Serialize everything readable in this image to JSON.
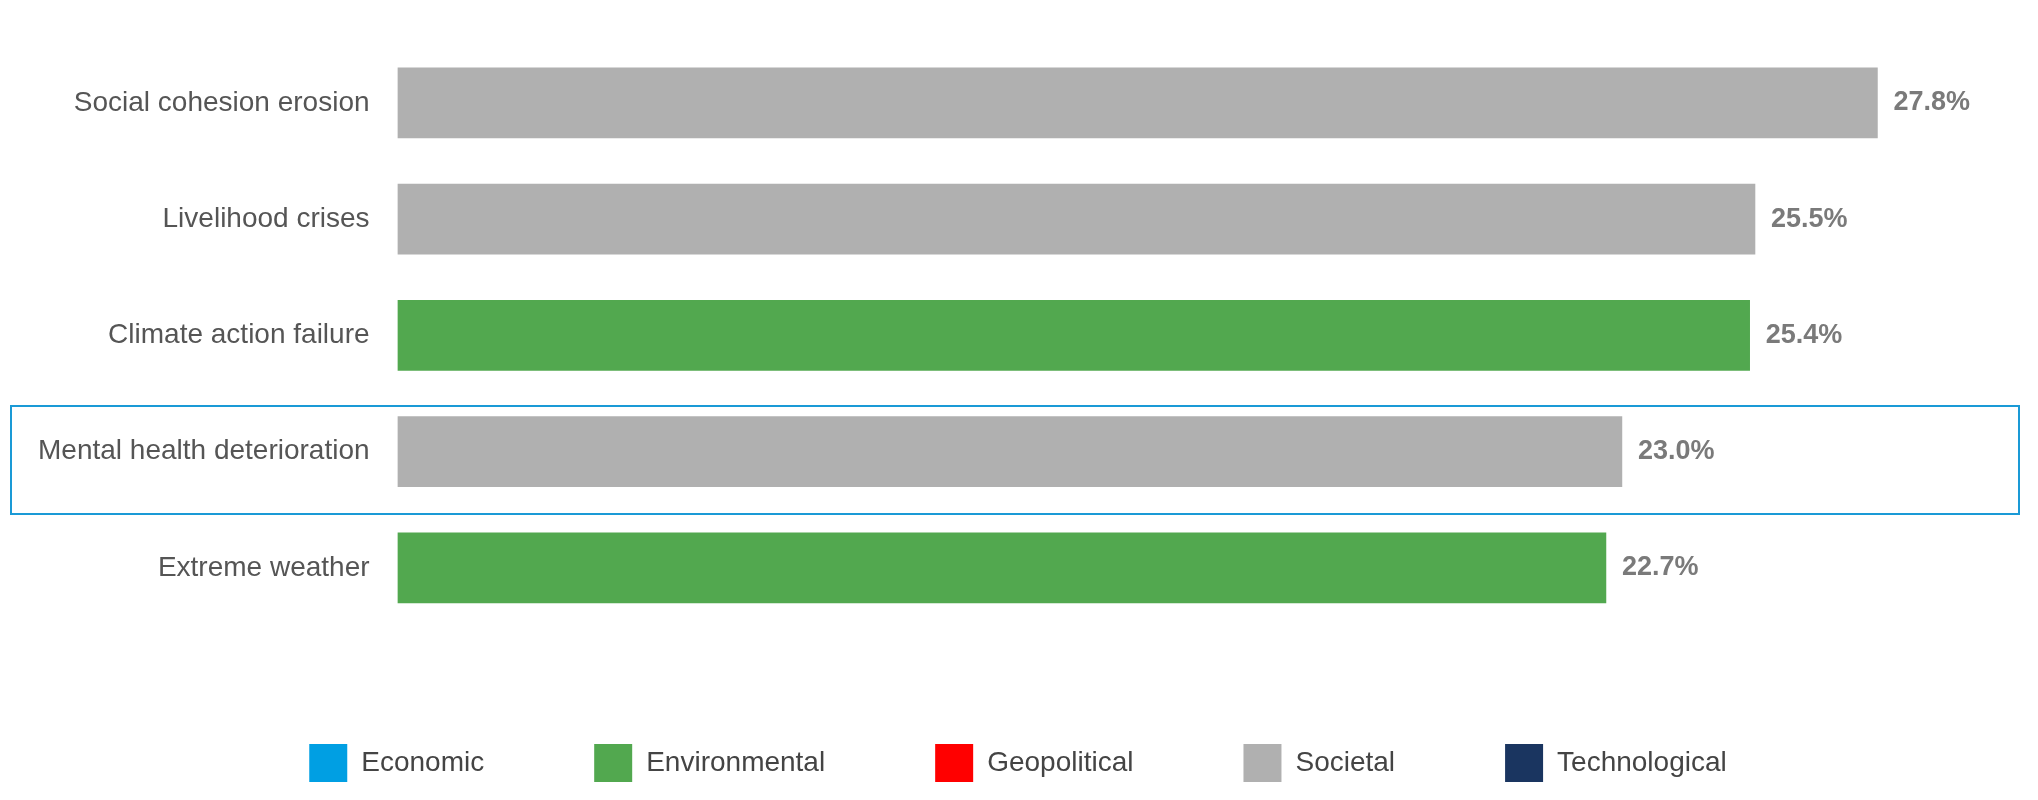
{
  "chart_data": {
    "type": "bar",
    "orientation": "horizontal",
    "stacked": true,
    "categories": [
      "Social cohesion erosion",
      "Livelihood crises",
      "Climate action failure",
      "Mental health deterioration",
      "Extreme weather"
    ],
    "series": [
      {
        "name": "Economic",
        "color": "#009fe3",
        "values": [
          null,
          null,
          null,
          null,
          null
        ]
      },
      {
        "name": "Environmental",
        "color": "#52a84f",
        "values": [
          null,
          null,
          25.4,
          null,
          22.7
        ],
        "value_labels": [
          null,
          null,
          "25.4%",
          null,
          "22.7%"
        ]
      },
      {
        "name": "Geopolitical",
        "color": "#ff0000",
        "values": [
          null,
          null,
          null,
          null,
          null
        ]
      },
      {
        "name": "Societal",
        "color": "#b0b0b0",
        "values": [
          27.8,
          25.5,
          null,
          23.0,
          null
        ],
        "value_labels": [
          "27.8%",
          "25.5%",
          null,
          "23.0%",
          null
        ]
      },
      {
        "name": "Technological",
        "color": "#1a3560",
        "values": [
          null,
          null,
          null,
          null,
          null
        ]
      }
    ],
    "relative": false,
    "grid": false,
    "legend": "bottom"
  }
}
